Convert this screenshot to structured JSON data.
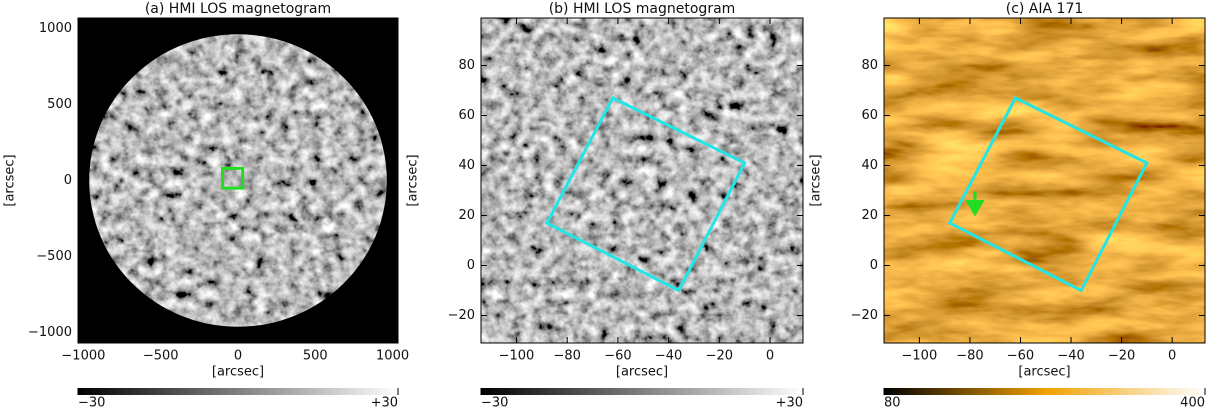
{
  "chart_data": [
    {
      "type": "image",
      "title": "(a) HMI LOS magnetogram",
      "xlabel": "[arcsec]",
      "ylabel": "[arcsec]",
      "xlim": [
        -1035,
        1035
      ],
      "ylim": [
        -1070,
        1070
      ],
      "xticks": [
        {
          "value": -1000,
          "label": "−1000"
        },
        {
          "value": -500,
          "label": "−500"
        },
        0,
        500,
        1000
      ],
      "yticks": [
        {
          "value": -1000,
          "label": "−1000"
        },
        {
          "value": -500,
          "label": "−500"
        },
        0,
        500,
        1000
      ],
      "style": "disk",
      "box": {
        "x": [
          -100,
          30,
          30,
          -100
        ],
        "y": [
          80,
          80,
          -50,
          -50
        ],
        "color": "#22dd22"
      },
      "colorbar": {
        "colors": [
          "#000000",
          "#ffffff"
        ],
        "lim": [
          -30,
          30
        ],
        "ticks": [
          {
            "value": -30,
            "label": "−30"
          },
          {
            "value": 30,
            "label": "+30"
          }
        ]
      }
    },
    {
      "type": "image",
      "title": "(b) HMI LOS magnetogram",
      "xlabel": "[arcsec]",
      "ylabel": "[arcsec]",
      "xlim": [
        -114,
        13
      ],
      "ylim": [
        -31,
        99
      ],
      "xticks": [
        {
          "value": -100,
          "label": "−100"
        },
        {
          "value": -80,
          "label": "−80"
        },
        {
          "value": -60,
          "label": "−60"
        },
        {
          "value": -40,
          "label": "−40"
        },
        {
          "value": -20,
          "label": "−20"
        },
        0
      ],
      "yticks": [
        {
          "value": -20,
          "label": "−20"
        },
        0,
        20,
        40,
        60,
        80
      ],
      "style": "gray",
      "box": {
        "x": [
          -62,
          -10,
          -36,
          -88
        ],
        "y": [
          67,
          41,
          -10,
          17
        ],
        "color": "#22e5e5"
      },
      "colorbar": {
        "colors": [
          "#000000",
          "#ffffff"
        ],
        "lim": [
          -30,
          30
        ],
        "ticks": [
          {
            "value": -30,
            "label": "−30"
          },
          {
            "value": 30,
            "label": "+30"
          }
        ]
      }
    },
    {
      "type": "image",
      "title": "(c) AIA 171",
      "xlabel": "[arcsec]",
      "ylabel": "[arcsec]",
      "xlim": [
        -114,
        13
      ],
      "ylim": [
        -31,
        99
      ],
      "xticks": [
        {
          "value": -100,
          "label": "−100"
        },
        {
          "value": -80,
          "label": "−80"
        },
        {
          "value": -60,
          "label": "−60"
        },
        {
          "value": -40,
          "label": "−40"
        },
        {
          "value": -20,
          "label": "−20"
        },
        0
      ],
      "yticks": [
        {
          "value": -20,
          "label": "−20"
        },
        0,
        20,
        40,
        60,
        80
      ],
      "style": "orange",
      "box": {
        "x": [
          -62,
          -10,
          -36,
          -88
        ],
        "y": [
          67,
          41,
          -10,
          17
        ],
        "color": "#22e5e5"
      },
      "arrow": {
        "x": -78,
        "y": 24,
        "color": "#22dd22"
      },
      "colorbar": {
        "colors": [
          "#000000",
          "#f0a000",
          "#ffffff"
        ],
        "lim": [
          80,
          400
        ],
        "ticks": [
          80,
          400
        ]
      }
    }
  ]
}
